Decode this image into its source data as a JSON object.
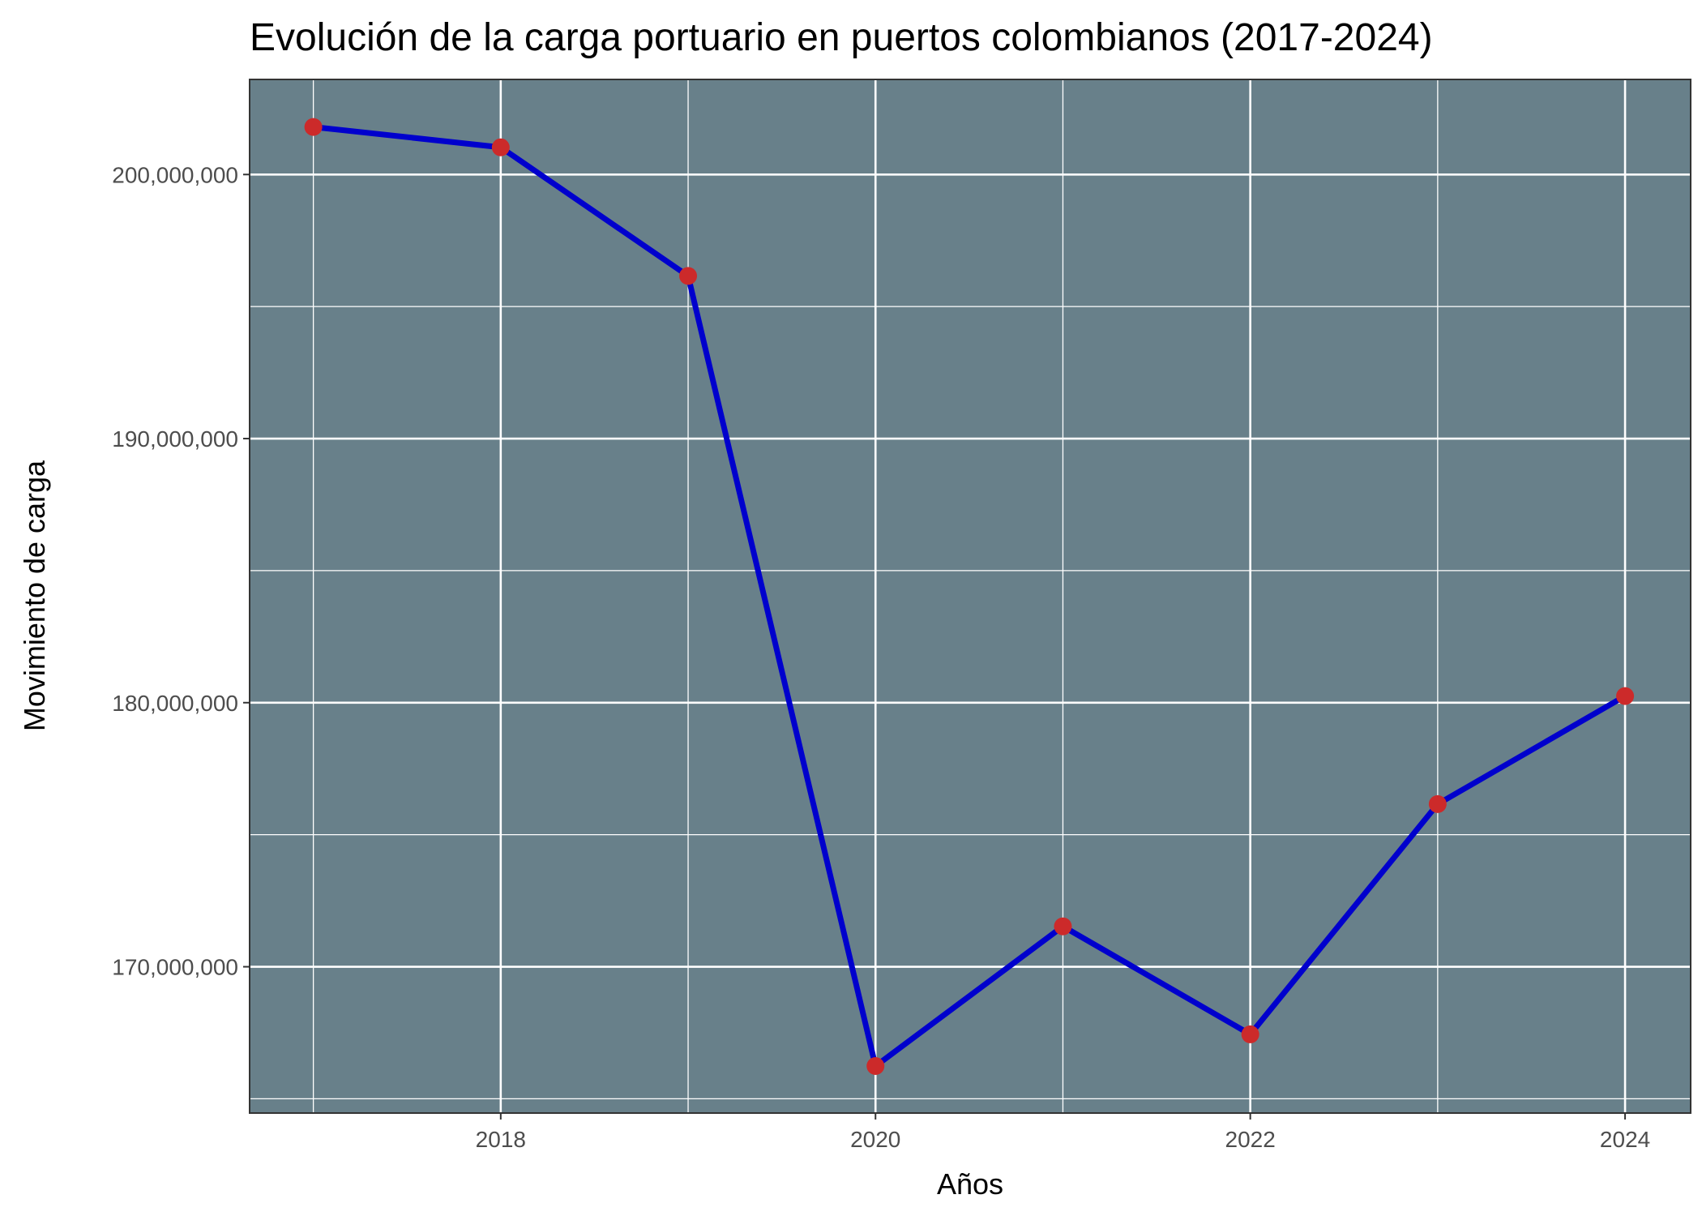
{
  "chart_data": {
    "type": "line",
    "title": "Evolución de la carga portuario en puertos colombianos (2017-2024)",
    "xlabel": "Años",
    "ylabel": "Movimiento de carga",
    "x": [
      2017,
      2018,
      2019,
      2020,
      2021,
      2022,
      2023,
      2024
    ],
    "series": [
      {
        "name": "Movimiento de carga",
        "values": [
          201800000,
          201030000,
          196160000,
          166240000,
          171530000,
          167440000,
          176160000,
          180250000
        ]
      }
    ],
    "xlim": [
      2016.66,
      2024.35
    ],
    "ylim": [
      164460000,
      203600000
    ],
    "xticks": [
      2018,
      2020,
      2022,
      2024
    ],
    "xtick_labels": [
      "2018",
      "2020",
      "2022",
      "2024"
    ],
    "yticks": [
      170000000,
      180000000,
      190000000,
      200000000
    ],
    "ytick_labels": [
      "170,000,000",
      "180,000,000",
      "190,000,000",
      "200,000,000"
    ],
    "grid": true,
    "colors": {
      "panel": "#68808a",
      "line": "#0000cd",
      "point": "#cc2a2a",
      "grid": "#ffffff"
    }
  }
}
